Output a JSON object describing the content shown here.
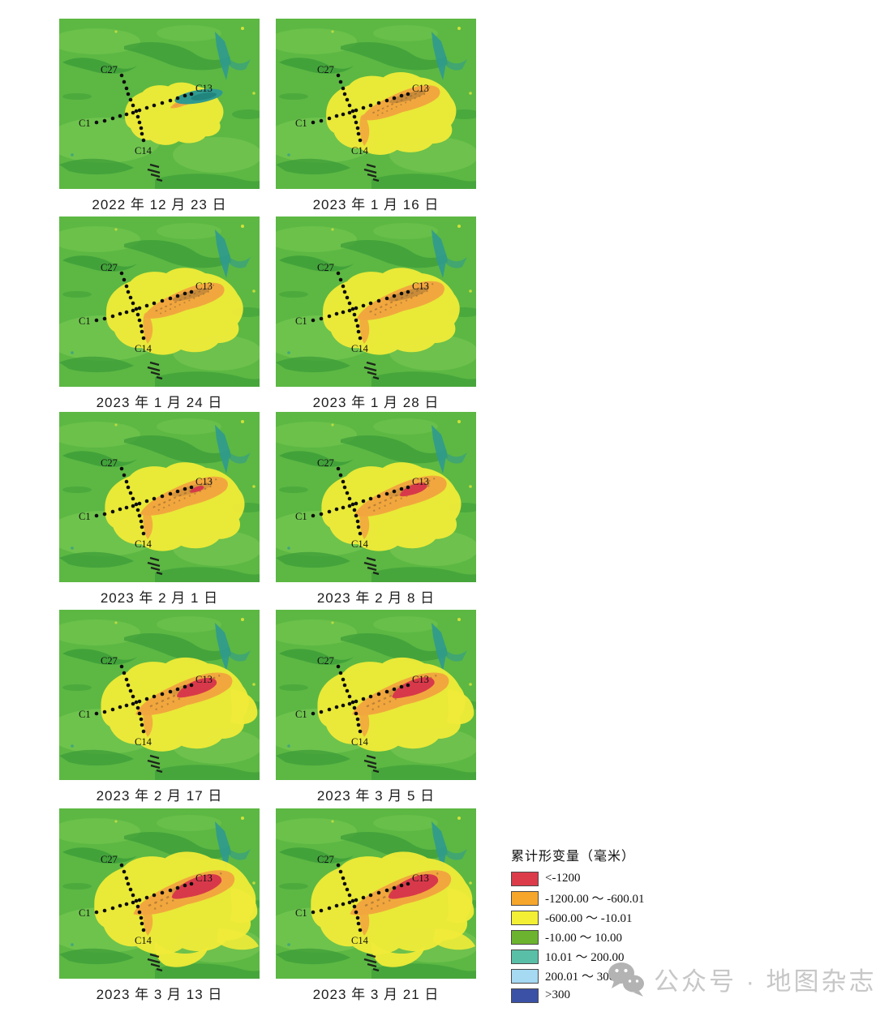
{
  "figure": {
    "type": "cumulative-deformation-map-time-series",
    "panel_count": 10
  },
  "panels": [
    {
      "date": "2022 年 12 月 23 日",
      "yellow": 0.72,
      "orange": 0.3,
      "red": 0,
      "teal_patch": true,
      "lobes": false
    },
    {
      "date": "2023 年 1 月 16 日",
      "yellow": 0.95,
      "orange": 0.9,
      "red": 0,
      "teal_patch": false,
      "lobes": false
    },
    {
      "date": "2023 年 1 月 24 日",
      "yellow": 1.0,
      "orange": 0.92,
      "red": 0,
      "teal_patch": false,
      "lobes": false
    },
    {
      "date": "2023 年 1 月 28 日",
      "yellow": 1.0,
      "orange": 1.0,
      "red": 0,
      "teal_patch": false,
      "lobes": false
    },
    {
      "date": "2023 年 2 月 1 日",
      "yellow": 1.02,
      "orange": 1.0,
      "red": 0.28,
      "teal_patch": false,
      "lobes": false
    },
    {
      "date": "2023 年 2 月 8 日",
      "yellow": 1.02,
      "orange": 1.05,
      "red": 0.55,
      "teal_patch": false,
      "lobes": false
    },
    {
      "date": "2023 年 2 月 17 日",
      "yellow": 1.08,
      "orange": 1.1,
      "red": 0.8,
      "teal_patch": false,
      "lobes": true
    },
    {
      "date": "2023 年 3 月 5 日",
      "yellow": 1.08,
      "orange": 1.1,
      "red": 0.85,
      "teal_patch": false,
      "lobes": true
    },
    {
      "date": "2023 年 3 月 13 日",
      "yellow": 1.18,
      "orange": 1.15,
      "red": 1.0,
      "teal_patch": false,
      "lobes": true
    },
    {
      "date": "2023 年 3 月 21 日",
      "yellow": 1.18,
      "orange": 1.15,
      "red": 1.0,
      "teal_patch": false,
      "lobes": true
    }
  ],
  "map_labels": {
    "c27": "C27",
    "c13": "C13",
    "c1": "C1",
    "c14": "C14"
  },
  "map_colors": {
    "base": "#5cb843",
    "light": "#86d05a",
    "dark": "#3c9c38",
    "drain": "#2f9a8f",
    "yellow": "#f0eb38",
    "orange": "#f2a73e",
    "brown": "#8a6132",
    "red": "#d8394a"
  },
  "legend": {
    "title": "累计形变量（毫米）",
    "items": [
      {
        "color": "#dc3b4a",
        "label": "<-1200"
      },
      {
        "color": "#f6a62b",
        "label": "-1200.00 ～ -600.01"
      },
      {
        "color": "#f2ef34",
        "label": "-600.00 ～ -10.01"
      },
      {
        "color": "#6cb42f",
        "label": "-10.00 ～ 10.00"
      },
      {
        "color": "#5abfa7",
        "label": "10.01 ～ 200.00"
      },
      {
        "color": "#a6d9f2",
        "label": "200.01 ～ 300.00"
      },
      {
        "color": "#3b51a6",
        "label": ">300"
      }
    ]
  },
  "watermark": {
    "icon": "wechat-icon",
    "text": "公众号 · 地图杂志"
  }
}
